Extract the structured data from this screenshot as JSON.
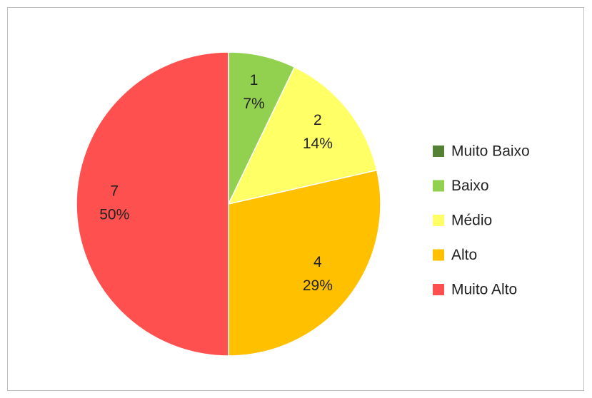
{
  "chart_data": {
    "type": "pie",
    "categories": [
      "Muito Baixo",
      "Baixo",
      "Médio",
      "Alto",
      "Muito Alto"
    ],
    "values": [
      0,
      1,
      2,
      4,
      7
    ],
    "percentages": [
      0,
      7,
      14,
      29,
      50
    ],
    "percentage_labels": [
      null,
      "7%",
      "14%",
      "29%",
      "50%"
    ],
    "colors": [
      "#548235",
      "#92d050",
      "#ffff66",
      "#ffc000",
      "#ff5050"
    ],
    "legend": "right"
  }
}
